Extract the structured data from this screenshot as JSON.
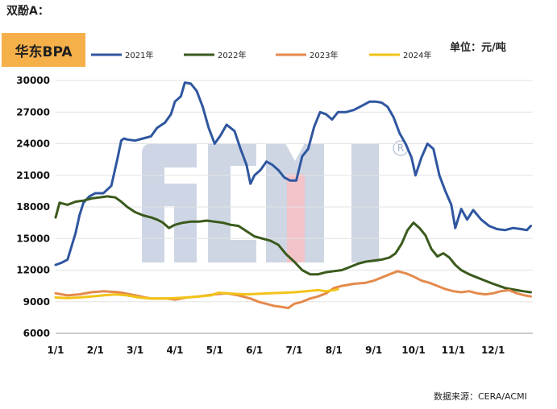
{
  "heading": "双酚A：",
  "badge": "华东BPA",
  "unit": "单位：元/吨",
  "source": "数据来源：CERA/ACMI",
  "colors": {
    "2021年": "#2f56a0",
    "2022年": "#3a5a1c",
    "2023年": "#e48a4c",
    "2024年": "#f2c318",
    "badge": "#f5b04a",
    "watermark_blue": "#c6cfe0",
    "watermark_pink": "#f0b9bf"
  },
  "chart_data": {
    "type": "line",
    "title": "",
    "xlabel": "",
    "ylabel": "",
    "ylim": [
      6000,
      30000
    ],
    "yticks": [
      6000,
      9000,
      12000,
      15000,
      18000,
      21000,
      24000,
      27000,
      30000
    ],
    "x_tick_labels": [
      "1/1",
      "2/1",
      "3/1",
      "4/1",
      "5/1",
      "6/1",
      "7/1",
      "8/1",
      "9/1",
      "10/1",
      "11/1",
      "12/1"
    ],
    "x_unit": "month (decimal, 1 = Jan 1)",
    "grid": "horizontal",
    "legend_position": "top",
    "series": [
      {
        "name": "2021年",
        "x": [
          1.0,
          1.15,
          1.3,
          1.5,
          1.6,
          1.7,
          1.85,
          2.0,
          2.1,
          2.2,
          2.4,
          2.55,
          2.65,
          2.72,
          2.8,
          3.0,
          3.2,
          3.4,
          3.55,
          3.75,
          3.9,
          4.0,
          4.15,
          4.25,
          4.4,
          4.55,
          4.7,
          4.85,
          5.0,
          5.15,
          5.3,
          5.5,
          5.65,
          5.8,
          5.9,
          6.0,
          6.15,
          6.3,
          6.45,
          6.6,
          6.75,
          6.9,
          7.05,
          7.2,
          7.35,
          7.5,
          7.65,
          7.8,
          7.95,
          8.1,
          8.3,
          8.5,
          8.7,
          8.9,
          9.05,
          9.2,
          9.35,
          9.5,
          9.65,
          9.8,
          9.95,
          10.05,
          10.2,
          10.35,
          10.5,
          10.65,
          10.8,
          10.95,
          11.05,
          11.2,
          11.35,
          11.5,
          11.7,
          11.9,
          12.1,
          12.3,
          12.5,
          12.7,
          12.85,
          12.95
        ],
        "values": [
          12500,
          12700,
          13000,
          15500,
          17200,
          18400,
          19000,
          19300,
          19300,
          19300,
          20000,
          22500,
          24300,
          24500,
          24400,
          24300,
          24500,
          24700,
          25500,
          26000,
          26800,
          28000,
          28500,
          29800,
          29700,
          29000,
          27500,
          25500,
          24000,
          24800,
          25800,
          25200,
          23500,
          22000,
          20200,
          21000,
          21500,
          22300,
          22000,
          21500,
          20800,
          20500,
          20500,
          22800,
          23500,
          25600,
          27000,
          26800,
          26300,
          27000,
          27000,
          27200,
          27600,
          28000,
          28000,
          27900,
          27500,
          26500,
          25000,
          24000,
          22700,
          21000,
          22700,
          24000,
          23500,
          21000,
          19500,
          18200,
          16000,
          17800,
          16800,
          17700,
          16800,
          16200,
          15900,
          15800,
          16000,
          15900,
          15800,
          16200
        ]
      },
      {
        "name": "2022年",
        "x": [
          1.0,
          1.1,
          1.3,
          1.5,
          1.7,
          1.9,
          2.1,
          2.3,
          2.5,
          2.65,
          2.8,
          3.0,
          3.2,
          3.4,
          3.55,
          3.7,
          3.85,
          4.0,
          4.2,
          4.4,
          4.6,
          4.8,
          5.0,
          5.2,
          5.4,
          5.6,
          5.8,
          6.0,
          6.2,
          6.4,
          6.6,
          6.8,
          7.0,
          7.2,
          7.4,
          7.6,
          7.8,
          8.0,
          8.2,
          8.4,
          8.6,
          8.8,
          9.0,
          9.2,
          9.4,
          9.55,
          9.7,
          9.85,
          10.0,
          10.15,
          10.3,
          10.45,
          10.6,
          10.75,
          10.9,
          11.05,
          11.2,
          11.4,
          11.6,
          11.8,
          12.0,
          12.15,
          12.3,
          12.45,
          12.6,
          12.75,
          12.95
        ],
        "values": [
          17000,
          18400,
          18200,
          18500,
          18600,
          18800,
          18900,
          19000,
          18900,
          18500,
          18000,
          17500,
          17200,
          17000,
          16800,
          16500,
          16000,
          16300,
          16500,
          16600,
          16600,
          16700,
          16600,
          16500,
          16300,
          16200,
          15700,
          15200,
          15000,
          14800,
          14400,
          13500,
          12800,
          12000,
          11600,
          11600,
          11800,
          11900,
          12000,
          12300,
          12600,
          12800,
          12900,
          13000,
          13200,
          13600,
          14500,
          15800,
          16500,
          16000,
          15300,
          14000,
          13300,
          13600,
          13200,
          12500,
          12000,
          11600,
          11300,
          11000,
          10700,
          10500,
          10300,
          10200,
          10100,
          10000,
          9900
        ]
      },
      {
        "name": "2023年",
        "x": [
          1.0,
          1.3,
          1.6,
          1.9,
          2.2,
          2.6,
          3.0,
          3.4,
          3.8,
          4.0,
          4.3,
          4.6,
          5.0,
          5.3,
          5.6,
          5.9,
          6.1,
          6.3,
          6.5,
          6.7,
          6.85,
          7.0,
          7.2,
          7.4,
          7.6,
          7.8,
          8.0,
          8.2,
          8.5,
          8.8,
          9.0,
          9.2,
          9.4,
          9.6,
          9.8,
          10.0,
          10.2,
          10.4,
          10.6,
          10.8,
          11.0,
          11.2,
          11.4,
          11.6,
          11.8,
          12.0,
          12.2,
          12.4,
          12.6,
          12.8,
          12.95
        ],
        "values": [
          9800,
          9600,
          9700,
          9900,
          10000,
          9900,
          9600,
          9300,
          9300,
          9200,
          9400,
          9500,
          9700,
          9800,
          9600,
          9300,
          9000,
          8800,
          8600,
          8500,
          8400,
          8800,
          9000,
          9300,
          9500,
          9800,
          10300,
          10500,
          10700,
          10800,
          11000,
          11300,
          11600,
          11900,
          11700,
          11400,
          11000,
          10800,
          10500,
          10200,
          10000,
          9900,
          10000,
          9800,
          9700,
          9800,
          10000,
          10100,
          9800,
          9600,
          9500
        ]
      },
      {
        "name": "2024年",
        "x": [
          1.0,
          1.3,
          1.6,
          1.9,
          2.2,
          2.5,
          2.8,
          3.1,
          3.4,
          3.7,
          4.0,
          4.3,
          4.6,
          4.9,
          5.1,
          5.3,
          5.5,
          5.8,
          6.1,
          6.4,
          6.7,
          7.0,
          7.3,
          7.6,
          7.8,
          8.0,
          8.1
        ],
        "values": [
          9400,
          9350,
          9400,
          9500,
          9600,
          9700,
          9600,
          9400,
          9300,
          9300,
          9350,
          9400,
          9500,
          9600,
          9850,
          9800,
          9750,
          9700,
          9750,
          9800,
          9850,
          9900,
          10000,
          10100,
          10000,
          10100,
          10200
        ]
      }
    ]
  }
}
